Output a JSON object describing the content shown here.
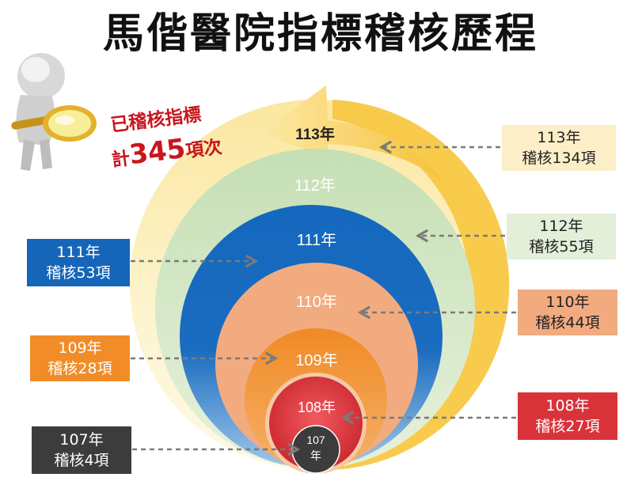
{
  "title": "馬偕醫院指標稽核歷程",
  "summary": {
    "line1": "已稽核指標",
    "line2_prefix": "計",
    "line2_number": "345",
    "line2_suffix": "項次"
  },
  "circles": {
    "y113": "113年",
    "y112": "112年",
    "y111": "111年",
    "y110": "110年",
    "y109": "109年",
    "y108": "108年",
    "y107_line1": "107",
    "y107_line2": "年"
  },
  "boxes": {
    "b113": {
      "year": "113年",
      "count": "稽核134項"
    },
    "b112": {
      "year": "112年",
      "count": "稽核55項"
    },
    "b111": {
      "year": "111年",
      "count": "稽核53項"
    },
    "b110": {
      "year": "110年",
      "count": "稽核44項"
    },
    "b109": {
      "year": "109年",
      "count": "稽核28項"
    },
    "b108": {
      "year": "108年",
      "count": "稽核27項"
    },
    "b107": {
      "year": "107年",
      "count": "稽核4項"
    }
  },
  "colors": {
    "yellow": "#f7c843",
    "green": "#c5dfb4",
    "blue": "#1565b8",
    "salmon": "#f2ab7f",
    "orange": "#f28c28",
    "red": "#d9333a",
    "dark": "#3c3c3c",
    "accent_red": "#c8161d"
  }
}
